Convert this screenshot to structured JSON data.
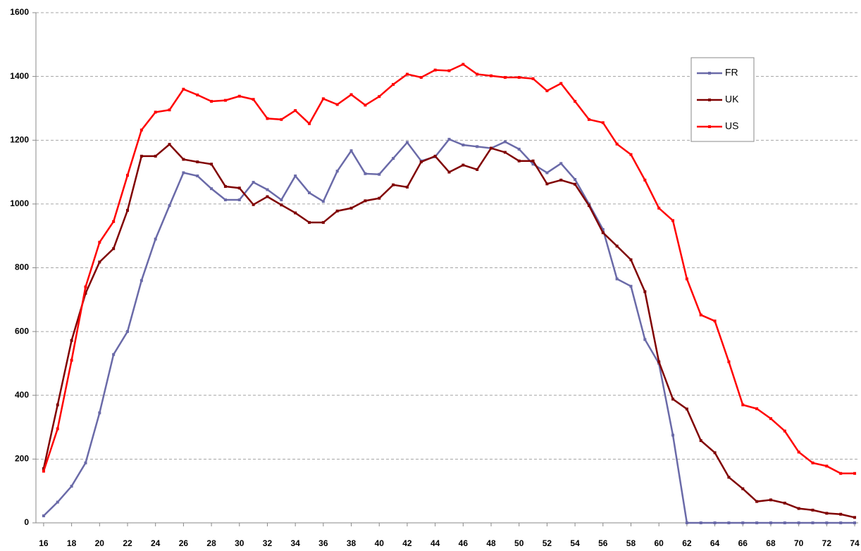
{
  "chart_data": {
    "type": "line",
    "x": [
      16,
      17,
      18,
      19,
      20,
      21,
      22,
      23,
      24,
      25,
      26,
      27,
      28,
      29,
      30,
      31,
      32,
      33,
      34,
      35,
      36,
      37,
      38,
      39,
      40,
      41,
      42,
      43,
      44,
      45,
      46,
      47,
      48,
      49,
      50,
      51,
      52,
      53,
      54,
      55,
      56,
      57,
      58,
      59,
      60,
      61,
      62,
      63,
      64,
      65,
      66,
      67,
      68,
      69,
      70,
      71,
      72,
      73,
      74
    ],
    "series": [
      {
        "name": "FR",
        "color": "#6a6aa8",
        "values": [
          22,
          65,
          115,
          188,
          345,
          528,
          600,
          760,
          890,
          995,
          1098,
          1088,
          1048,
          1013,
          1013,
          1068,
          1045,
          1013,
          1088,
          1035,
          1008,
          1103,
          1167,
          1095,
          1093,
          1143,
          1193,
          1135,
          1148,
          1203,
          1185,
          1180,
          1175,
          1195,
          1172,
          1125,
          1098,
          1127,
          1077,
          1000,
          920,
          765,
          742,
          575,
          500,
          275,
          0,
          0,
          0,
          0,
          0,
          0,
          0,
          0,
          0,
          0,
          0,
          0,
          0
        ]
      },
      {
        "name": "UK",
        "color": "#800000",
        "values": [
          170,
          370,
          572,
          720,
          818,
          860,
          980,
          1150,
          1150,
          1187,
          1140,
          1132,
          1125,
          1055,
          1050,
          998,
          1023,
          997,
          972,
          942,
          942,
          978,
          987,
          1010,
          1018,
          1060,
          1053,
          1132,
          1150,
          1100,
          1122,
          1108,
          1175,
          1162,
          1135,
          1135,
          1063,
          1075,
          1062,
          995,
          910,
          868,
          825,
          725,
          505,
          388,
          357,
          258,
          220,
          143,
          107,
          67,
          72,
          62,
          45,
          40,
          30,
          27,
          17
        ]
      },
      {
        "name": "US",
        "color": "#ff0000",
        "values": [
          162,
          295,
          510,
          740,
          880,
          945,
          1090,
          1232,
          1288,
          1295,
          1360,
          1342,
          1322,
          1325,
          1338,
          1328,
          1268,
          1265,
          1293,
          1252,
          1330,
          1312,
          1343,
          1310,
          1337,
          1375,
          1407,
          1397,
          1420,
          1418,
          1438,
          1407,
          1402,
          1397,
          1397,
          1393,
          1355,
          1378,
          1322,
          1265,
          1255,
          1188,
          1155,
          1075,
          987,
          948,
          765,
          652,
          633,
          505,
          370,
          358,
          327,
          288,
          222,
          188,
          178,
          155,
          155
        ]
      }
    ],
    "xlim": [
      15.45,
      74.25
    ],
    "xticks": [
      16,
      18,
      20,
      22,
      24,
      26,
      28,
      30,
      32,
      34,
      36,
      38,
      40,
      42,
      44,
      46,
      48,
      50,
      52,
      54,
      56,
      58,
      60,
      62,
      64,
      66,
      68,
      70,
      72,
      74
    ],
    "ylim": [
      0,
      1600
    ],
    "yticks": [
      0,
      200,
      400,
      600,
      800,
      1000,
      1200,
      1400,
      1600
    ],
    "grid": true,
    "legend": "upper right"
  }
}
